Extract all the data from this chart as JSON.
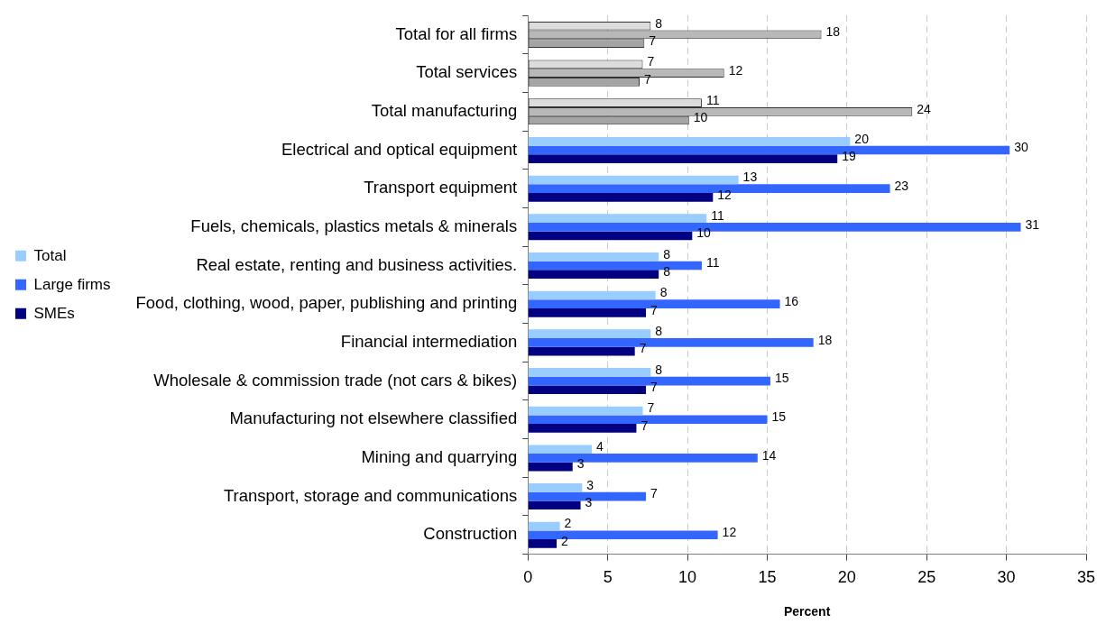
{
  "chart_data": {
    "type": "bar",
    "orientation": "horizontal",
    "xlabel": "Percent",
    "categories": [
      "Total for all firms",
      "Total services",
      "Total manufacturing",
      "Electrical and optical equipment",
      "Transport equipment",
      "Fuels, chemicals, plastics metals & minerals",
      "Real estate, renting and business activities.",
      "Food, clothing, wood, paper, publishing and printing",
      "Financial intermediation",
      "Wholesale & commission trade (not cars & bikes)",
      "Manufacturing not elsewhere classified",
      "Mining and quarrying",
      "Transport, storage and communications",
      "Construction"
    ],
    "series": [
      {
        "name": "Total",
        "color": "#99ccff",
        "colors": [
          "#dcdcdc",
          "#dcdcdc",
          "#dcdcdc",
          "#99ccff",
          "#99ccff",
          "#99ccff",
          "#99ccff",
          "#99ccff",
          "#99ccff",
          "#99ccff",
          "#99ccff",
          "#99ccff",
          "#99ccff",
          "#99ccff"
        ],
        "values": [
          7.7,
          7.2,
          10.9,
          20.2,
          13.2,
          11.2,
          8.2,
          8.0,
          7.7,
          7.7,
          7.2,
          4.0,
          3.4,
          2.0
        ],
        "value_labels": [
          "8",
          "7",
          "11",
          "20",
          "13",
          "11",
          "8",
          "8",
          "8",
          "8",
          "7",
          "4",
          "3",
          "2"
        ]
      },
      {
        "name": "Large firms",
        "color": "#3366ff",
        "colors": [
          "#b8b8b8",
          "#b8b8b8",
          "#b8b8b8",
          "#3366ff",
          "#3366ff",
          "#3366ff",
          "#3366ff",
          "#3366ff",
          "#3366ff",
          "#3366ff",
          "#3366ff",
          "#3366ff",
          "#3366ff",
          "#3366ff"
        ],
        "values": [
          18.4,
          12.3,
          24.1,
          30.2,
          22.7,
          30.9,
          10.9,
          15.8,
          17.9,
          15.2,
          15.0,
          14.4,
          7.4,
          11.9
        ],
        "value_labels": [
          "18",
          "12",
          "24",
          "30",
          "23",
          "31",
          "11",
          "16",
          "18",
          "15",
          "15",
          "14",
          "7",
          "12"
        ]
      },
      {
        "name": "SMEs",
        "color": "#000080",
        "colors": [
          "#a4a4a4",
          "#a4a4a4",
          "#a4a4a4",
          "#000080",
          "#000080",
          "#000080",
          "#000080",
          "#000080",
          "#000080",
          "#000080",
          "#000080",
          "#000080",
          "#000080",
          "#000080"
        ],
        "values": [
          7.3,
          7.0,
          10.1,
          19.4,
          11.6,
          10.3,
          8.2,
          7.4,
          6.7,
          7.4,
          6.8,
          2.8,
          3.3,
          1.8
        ],
        "value_labels": [
          "7",
          "7",
          "10",
          "19",
          "12",
          "10",
          "8",
          "7",
          "7",
          "7",
          "7",
          "3",
          "3",
          "2"
        ]
      }
    ],
    "xlim": [
      0,
      35
    ],
    "xticks": [
      0,
      5,
      10,
      15,
      20,
      25,
      30,
      35
    ],
    "grid": "x",
    "legend": "left"
  }
}
